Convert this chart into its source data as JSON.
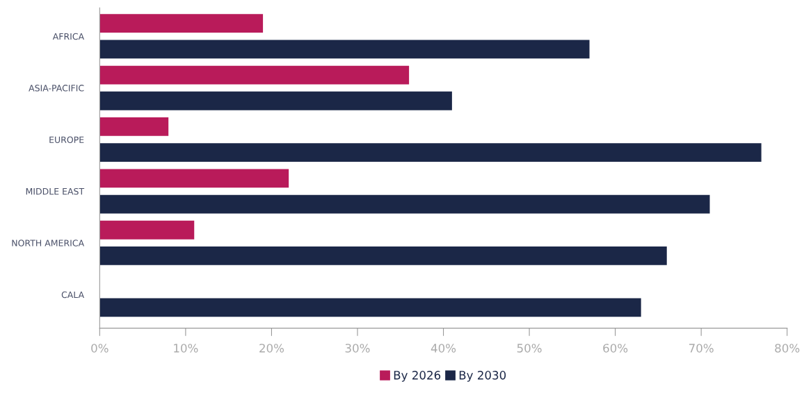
{
  "chart_data": {
    "type": "bar",
    "orientation": "horizontal",
    "categories": [
      "AFRICA",
      "ASIA-PACIFIC",
      "EUROPE",
      "MIDDLE EAST",
      "NORTH AMERICA",
      "CALA"
    ],
    "series": [
      {
        "name": "By 2026",
        "color": "#b91b5a",
        "values": [
          19,
          36,
          8,
          22,
          11,
          0
        ]
      },
      {
        "name": "By 2030",
        "color": "#1b2747",
        "values": [
          57,
          41,
          77,
          71,
          66,
          63
        ]
      }
    ],
    "xlim": [
      0,
      80
    ],
    "xticks": [
      {
        "value": 0,
        "label": "0%"
      },
      {
        "value": 10,
        "label": "10%"
      },
      {
        "value": 20,
        "label": "20%"
      },
      {
        "value": 30,
        "label": "30%"
      },
      {
        "value": 40,
        "label": "40%"
      },
      {
        "value": 50,
        "label": "50%"
      },
      {
        "value": 60,
        "label": "60%"
      },
      {
        "value": 70,
        "label": "70%"
      },
      {
        "value": 80,
        "label": "80%"
      }
    ],
    "grid": false,
    "legend": "bottom"
  }
}
